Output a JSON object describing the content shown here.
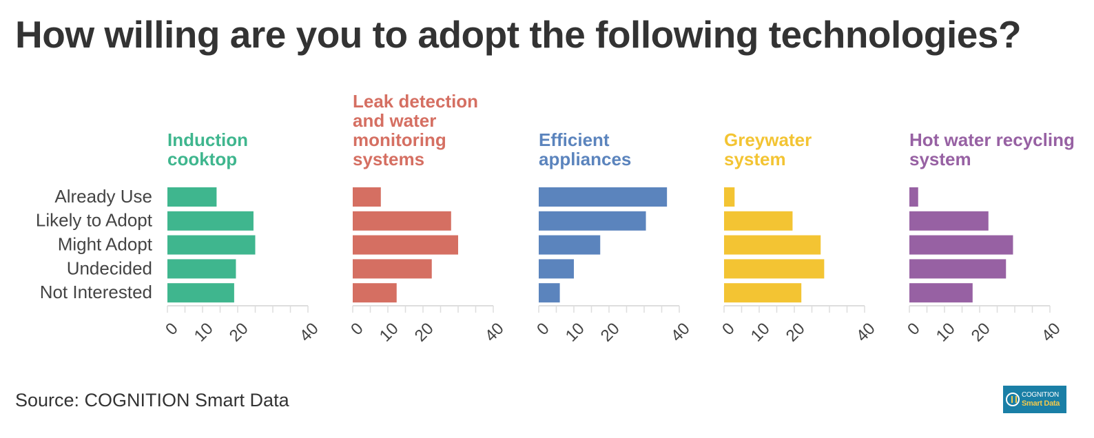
{
  "title": "How willing are you to adopt the following technologies?",
  "source": "Source: COGNITION Smart Data",
  "logo": {
    "line1": "COGNITION",
    "line2": "Smart Data"
  },
  "chart_data": {
    "type": "bar",
    "orientation": "horizontal",
    "categories": [
      "Already Use",
      "Likely to Adopt",
      "Might Adopt",
      "Undecided",
      "Not Interested"
    ],
    "xlim": [
      0,
      40
    ],
    "xticks": [
      0,
      10,
      20,
      40
    ],
    "grid": false,
    "series": [
      {
        "name": "Induction cooktop",
        "color": "#3fb68e",
        "values": [
          14,
          24.5,
          25,
          19.5,
          19
        ]
      },
      {
        "name": "Leak detection and water monitoring systems",
        "color": "#d56f62",
        "values": [
          8,
          28,
          30,
          22.5,
          12.5
        ]
      },
      {
        "name": "Efficient appliances",
        "color": "#5b84bd",
        "values": [
          36.5,
          30.5,
          17.5,
          10,
          6
        ]
      },
      {
        "name": "Greywater system",
        "color": "#f3c433",
        "values": [
          3,
          19.5,
          27.5,
          28.5,
          22
        ]
      },
      {
        "name": "Hot water recycling system",
        "color": "#9761a3",
        "values": [
          2.5,
          22.5,
          29.5,
          27.5,
          18
        ]
      }
    ]
  }
}
